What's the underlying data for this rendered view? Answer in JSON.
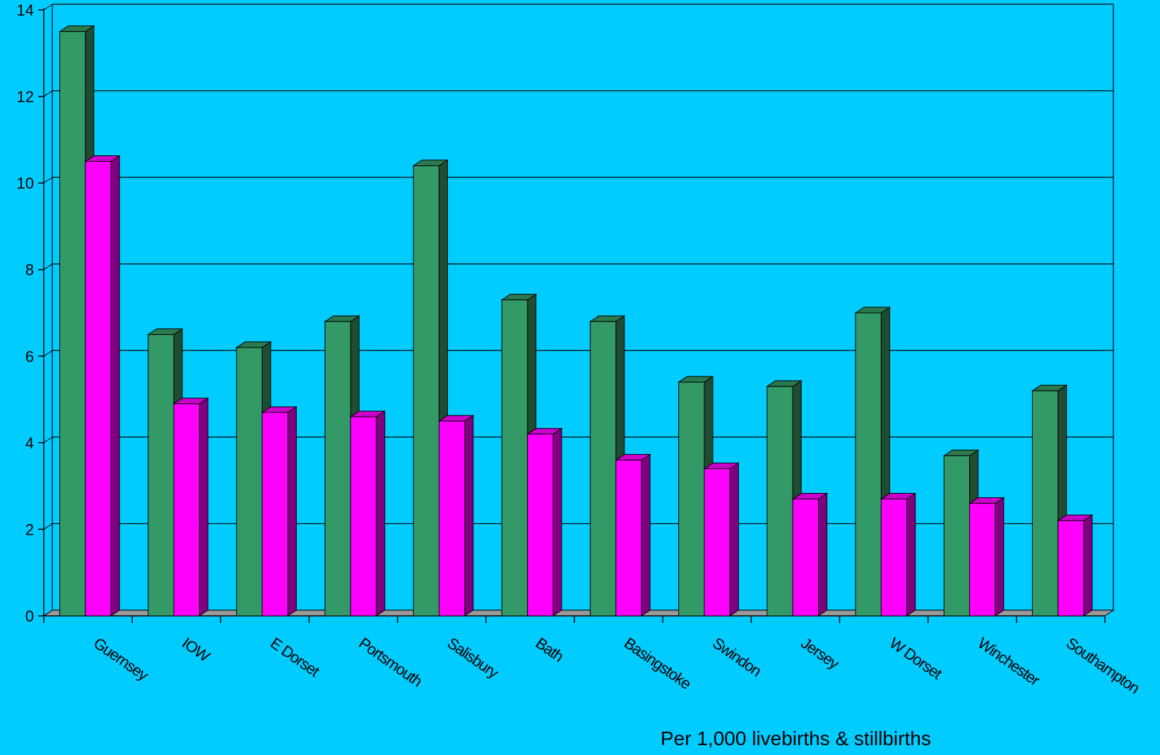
{
  "chart_data": {
    "type": "bar",
    "title": "",
    "xlabel": "Per 1,000 livebirths & stillbirths",
    "ylabel": "",
    "ylim": [
      0,
      14
    ],
    "yticks": [
      0,
      2,
      4,
      6,
      8,
      10,
      12,
      14
    ],
    "grid": true,
    "legend": "none",
    "style": "3d-clustered-column",
    "categories": [
      "Guernsey",
      "IOW",
      "E Dorset",
      "Portsmouth",
      "Salisbury",
      "Bath",
      "Basingstoke",
      "Swindon",
      "Jersey",
      "W Dorset",
      "Winchester",
      "Southampton"
    ],
    "series": [
      {
        "values": [
          13.5,
          6.5,
          6.2,
          6.8,
          10.4,
          7.3,
          6.8,
          5.4,
          5.3,
          7.0,
          3.7,
          5.2
        ],
        "color": "#339966",
        "side_color": "#1e4d33",
        "top_color": "#2a7a50"
      },
      {
        "values": [
          10.5,
          4.9,
          4.7,
          4.6,
          4.5,
          4.2,
          3.6,
          3.4,
          2.7,
          2.7,
          2.6,
          2.2
        ],
        "color": "#ff00ff",
        "side_color": "#800080",
        "top_color": "#cc00cc"
      }
    ],
    "colors": {
      "background": "#00ccff",
      "floor": "#999999",
      "gridline": "#000000"
    }
  }
}
